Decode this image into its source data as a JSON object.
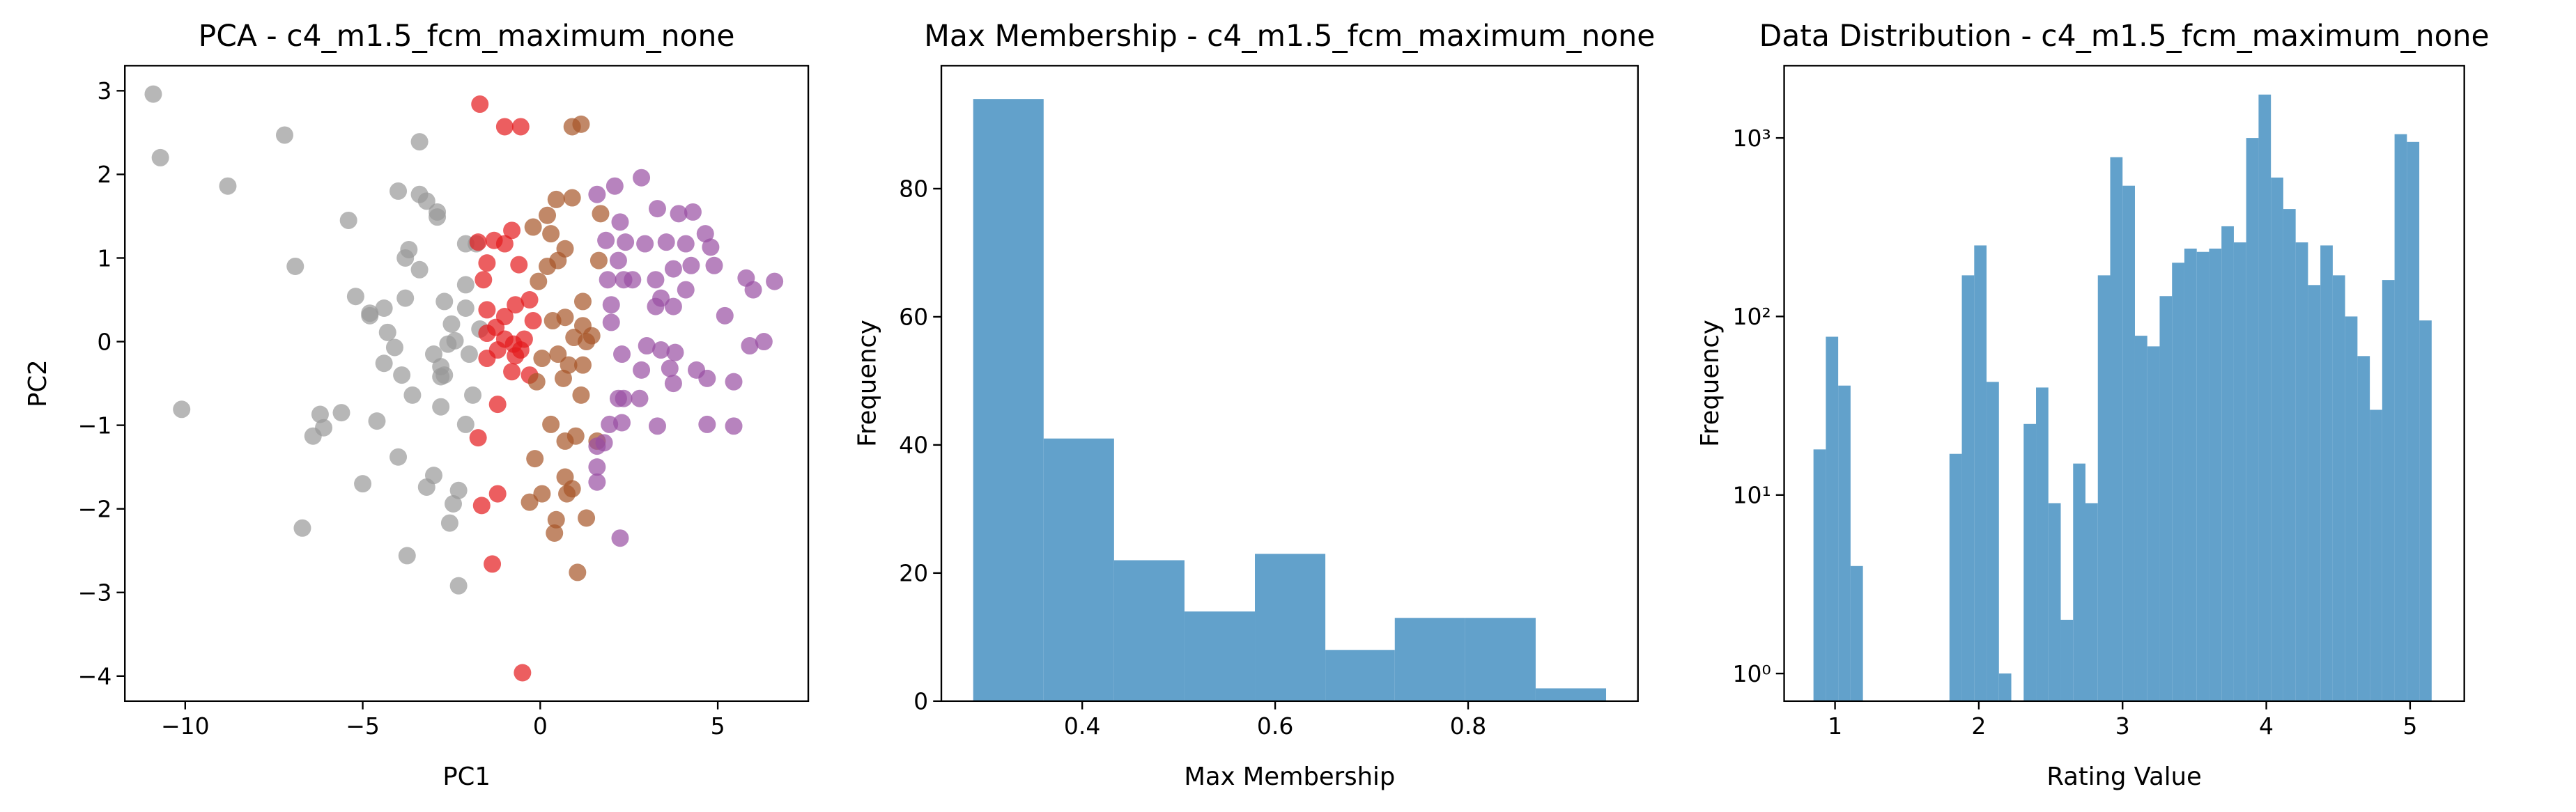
{
  "chart_data": [
    {
      "type": "scatter",
      "title": "PCA - c4_m1.5_fcm_maximum_none",
      "x_label": "PC1",
      "y_label": "PC2",
      "xlim": [
        -11.7,
        7.55
      ],
      "ylim": [
        -4.3,
        3.3
      ],
      "xticks": [
        {
          "value": -10,
          "label": "−10"
        },
        {
          "value": -5,
          "label": "−5"
        },
        0,
        5
      ],
      "yticks": [
        {
          "value": -4,
          "label": "−4"
        },
        {
          "value": -3,
          "label": "−3"
        },
        {
          "value": -2,
          "label": "−2"
        },
        {
          "value": -1,
          "label": "−1"
        },
        0,
        1,
        2,
        3
      ],
      "alpha": 0.7,
      "series": [
        {
          "color": "#999999",
          "x": [
            -10.9,
            -10.7,
            -8.8,
            -7.2,
            -10.1,
            -6.9,
            -6.7,
            -6.4,
            -6.2,
            -6.1,
            -5.6,
            -5.4,
            -5.2,
            -5.0,
            -4.8,
            -4.8,
            -4.6,
            -4.4,
            -4.3,
            -4.4,
            -4.1,
            -4.0,
            -4.0,
            -3.9,
            -3.8,
            -3.8,
            -3.75,
            -3.7,
            -3.6,
            -3.4,
            -3.4,
            -3.4,
            -3.2,
            -3.2,
            -3.0,
            -3.0,
            -2.9,
            -2.9,
            -2.8,
            -2.8,
            -2.8,
            -2.7,
            -2.6,
            -2.7,
            -2.55,
            -2.45,
            -2.5,
            -2.4,
            -2.3,
            -2.1,
            -2.1,
            -2.1,
            -2.1,
            -2.0,
            -1.9,
            -1.8,
            -1.7,
            -2.3
          ],
          "y": [
            2.96,
            2.2,
            1.86,
            2.47,
            -0.81,
            0.9,
            -2.23,
            -1.13,
            -0.87,
            -1.03,
            -0.85,
            1.45,
            0.54,
            -1.7,
            0.31,
            0.34,
            -0.95,
            0.4,
            0.11,
            -0.26,
            -0.07,
            -1.38,
            1.8,
            -0.4,
            0.52,
            1.0,
            -2.56,
            1.1,
            -0.64,
            2.39,
            1.76,
            0.86,
            1.68,
            -1.74,
            -1.6,
            -0.15,
            1.49,
            1.55,
            -0.3,
            -0.42,
            -0.78,
            0.48,
            -0.03,
            -0.4,
            -2.17,
            -1.94,
            0.21,
            0.01,
            -2.92,
            0.68,
            0.4,
            1.17,
            -0.99,
            -0.15,
            -0.64,
            1.17,
            0.15,
            -1.78
          ]
        },
        {
          "color": "#e41a1c",
          "x": [
            -1.7,
            -1.0,
            -0.55,
            -1.75,
            -1.5,
            -1.6,
            -1.3,
            -1.0,
            -0.6,
            -0.3,
            -0.7,
            -1.5,
            -1.25,
            -1.5,
            -1.0,
            -0.75,
            -0.55,
            -0.8,
            -0.7,
            -1.2,
            -1.5,
            -0.3,
            -1.75,
            -1.2,
            -1.2,
            -1.65,
            -1.35,
            -0.5,
            -1.0,
            -0.45,
            -0.2,
            -0.8
          ],
          "y": [
            2.84,
            2.57,
            2.57,
            1.19,
            0.94,
            0.74,
            1.21,
            1.17,
            0.92,
            0.5,
            0.44,
            0.38,
            0.17,
            0.1,
            0.03,
            -0.03,
            -0.1,
            -0.36,
            -0.17,
            -0.1,
            -0.2,
            -0.4,
            -1.15,
            -0.75,
            -1.82,
            -1.96,
            -2.66,
            -3.96,
            0.3,
            0.03,
            0.25,
            1.33
          ]
        },
        {
          "color": "#a65628",
          "x": [
            0.9,
            1.15,
            -0.2,
            0.2,
            0.45,
            0.9,
            0.2,
            0.5,
            0.7,
            0.3,
            -0.05,
            0.35,
            0.7,
            1.2,
            1.2,
            0.95,
            1.45,
            1.3,
            0.5,
            0.05,
            0.8,
            1.2,
            0.65,
            1.15,
            -0.1,
            -0.15,
            0.05,
            0.7,
            0.9,
            0.75,
            -0.3,
            0.45,
            0.4,
            1.3,
            1.05,
            1.6,
            1.0,
            0.7,
            0.3,
            1.65,
            1.7
          ],
          "y": [
            2.57,
            2.6,
            1.37,
            1.51,
            1.7,
            1.72,
            0.9,
            0.97,
            1.11,
            1.29,
            0.72,
            0.25,
            0.29,
            0.48,
            0.19,
            0.05,
            0.07,
            0.0,
            -0.15,
            -0.2,
            -0.28,
            -0.28,
            -0.44,
            -0.64,
            -0.48,
            -1.4,
            -1.82,
            -1.62,
            -1.76,
            -1.82,
            -1.92,
            -2.13,
            -2.29,
            -2.11,
            -2.76,
            -1.19,
            -1.13,
            -1.19,
            -0.99,
            0.97,
            1.53
          ]
        },
        {
          "color": "#984ea3",
          "x": [
            2.1,
            1.6,
            2.85,
            2.25,
            3.3,
            3.9,
            4.3,
            1.85,
            2.4,
            2.95,
            3.55,
            4.1,
            4.65,
            4.8,
            3.75,
            4.25,
            4.9,
            5.8,
            6.0,
            6.6,
            2.2,
            2.6,
            3.25,
            3.4,
            3.75,
            4.1,
            3.25,
            5.2,
            5.9,
            6.3,
            2.0,
            2.0,
            2.3,
            3.0,
            3.4,
            3.8,
            3.65,
            4.4,
            2.85,
            2.35,
            2.2,
            2.8,
            3.75,
            4.7,
            5.45,
            3.3,
            4.7,
            5.45,
            1.95,
            1.6,
            1.8,
            1.6,
            1.6,
            2.25,
            2.3,
            2.35,
            1.9
          ],
          "y": [
            1.86,
            1.76,
            1.96,
            1.43,
            1.59,
            1.53,
            1.55,
            1.21,
            1.19,
            1.17,
            1.19,
            1.17,
            1.29,
            1.13,
            0.87,
            0.91,
            0.91,
            0.76,
            0.62,
            0.72,
            0.97,
            0.74,
            0.42,
            0.52,
            0.42,
            0.62,
            0.74,
            0.31,
            -0.05,
            0.0,
            0.44,
            0.23,
            -0.15,
            -0.05,
            -0.1,
            -0.13,
            -0.32,
            -0.34,
            -0.34,
            -0.68,
            -0.68,
            -0.68,
            -0.5,
            -0.44,
            -0.48,
            -1.01,
            -0.99,
            -1.01,
            -0.99,
            -1.25,
            -1.21,
            -1.5,
            -1.68,
            -2.35,
            -0.97,
            0.74,
            0.74
          ]
        }
      ]
    },
    {
      "type": "histogram",
      "title": "Max Membership - c4_m1.5_fcm_maximum_none",
      "x_label": "Max Membership",
      "y_label": "Frequency",
      "xlim": [
        0.254,
        0.976
      ],
      "ylim": [
        0,
        99.2
      ],
      "xticks": [
        0.4,
        0.6,
        0.8
      ],
      "yticks": [
        0,
        20,
        40,
        60,
        80
      ],
      "color": "#62a1cb",
      "bins": [
        0.287,
        0.36,
        0.433,
        0.506,
        0.579,
        0.652,
        0.724,
        0.797,
        0.87,
        0.943
      ],
      "values": [
        94,
        41,
        22,
        14,
        23,
        8,
        13,
        13,
        2
      ]
    },
    {
      "type": "histogram",
      "title": "Data Distribution - c4_m1.5_fcm_maximum_none",
      "x_label": "Rating Value",
      "y_label": "Frequency",
      "xlim": [
        0.646,
        5.377
      ],
      "ylim": [
        0.7,
        2540
      ],
      "log_y": true,
      "xticks": [
        1,
        2,
        3,
        4,
        5
      ],
      "yticks": [
        {
          "value": 1,
          "label": "10⁰"
        },
        {
          "value": 10,
          "label": "10¹"
        },
        {
          "value": 100,
          "label": "10²"
        },
        {
          "value": 1000,
          "label": "10³"
        }
      ],
      "color": "#62a1cb",
      "bins": [
        0.85,
        0.936,
        1.022,
        1.108,
        1.194,
        1.28,
        1.366,
        1.452,
        1.538,
        1.624,
        1.71,
        1.796,
        1.882,
        1.968,
        2.054,
        2.14,
        2.226,
        2.312,
        2.398,
        2.484,
        2.57,
        2.656,
        2.742,
        2.828,
        2.914,
        3.0,
        3.086,
        3.172,
        3.258,
        3.344,
        3.43,
        3.516,
        3.602,
        3.688,
        3.774,
        3.86,
        3.946,
        4.032,
        4.118,
        4.204,
        4.29,
        4.376,
        4.462,
        4.548,
        4.634,
        4.72,
        4.806,
        4.892,
        4.978,
        5.064,
        5.15
      ],
      "values": [
        18,
        77,
        41,
        4,
        0,
        0,
        0,
        0,
        0,
        0,
        0,
        17,
        170,
        250,
        43,
        1,
        0,
        25,
        40,
        9,
        2,
        15,
        9,
        170,
        780,
        540,
        78,
        68,
        130,
        200,
        240,
        230,
        240,
        320,
        260,
        1000,
        1750,
        600,
        400,
        260,
        150,
        250,
        170,
        100,
        60,
        30,
        160,
        1050,
        950,
        95
      ]
    }
  ]
}
